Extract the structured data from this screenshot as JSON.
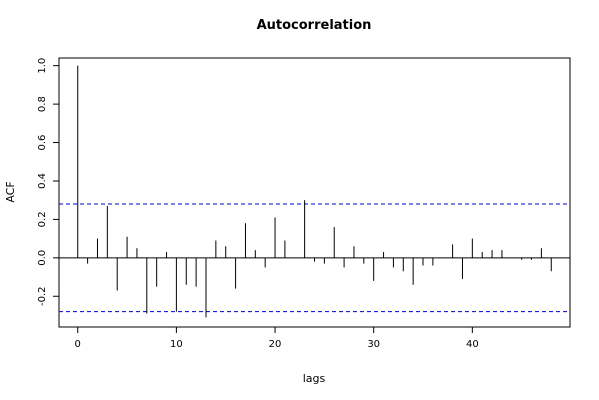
{
  "chart_data": {
    "type": "bar",
    "title": "Autocorrelation",
    "xlabel": "lags",
    "ylabel": "ACF",
    "xlim": [
      -1.9,
      49.9
    ],
    "ylim": [
      -0.36,
      1.04
    ],
    "x_ticks": [
      0,
      10,
      20,
      30,
      40
    ],
    "y_ticks": [
      -0.2,
      0.0,
      0.2,
      0.4,
      0.6,
      0.8,
      1.0
    ],
    "y_tick_labels": [
      "-0.2",
      "0.0",
      "0.2",
      "0.4",
      "0.6",
      "0.8",
      "1.0"
    ],
    "zero_line": 0.0,
    "confidence_bounds": [
      0.28,
      -0.28
    ],
    "confidence_color": "#0000cc",
    "series": [
      {
        "lags": [
          0,
          1,
          2,
          3,
          4,
          5,
          6,
          7,
          8,
          9,
          10,
          11,
          12,
          13,
          14,
          15,
          16,
          17,
          18,
          19,
          20,
          21,
          22,
          23,
          24,
          25,
          26,
          27,
          28,
          29,
          30,
          31,
          32,
          33,
          34,
          35,
          36,
          37,
          38,
          39,
          40,
          41,
          42,
          43,
          44,
          45,
          46,
          47,
          48
        ],
        "values": [
          1.0,
          -0.03,
          0.1,
          0.27,
          -0.17,
          0.11,
          0.05,
          -0.29,
          -0.15,
          0.03,
          -0.28,
          -0.14,
          -0.15,
          -0.31,
          0.09,
          0.06,
          -0.16,
          0.18,
          0.04,
          -0.05,
          0.21,
          0.09,
          0.0,
          0.3,
          -0.02,
          -0.03,
          0.16,
          -0.05,
          0.06,
          -0.03,
          -0.12,
          0.03,
          -0.05,
          -0.07,
          -0.14,
          -0.04,
          -0.04,
          0.0,
          0.07,
          -0.11,
          0.1,
          0.03,
          0.04,
          0.04,
          0.0,
          -0.01,
          -0.01,
          0.05,
          -0.07
        ]
      }
    ]
  }
}
